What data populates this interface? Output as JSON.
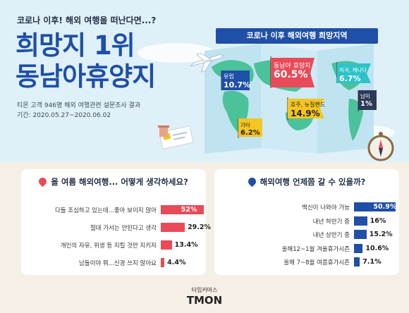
{
  "header": {
    "subtitle": "코로나 이후! 해외 여행을 떠난다면...?",
    "title_line1": "희망지 1위",
    "title_line2": "동남아휴양지",
    "source_line1": "티몬 고객 946명 해외 여행관련 설문조사 결과",
    "source_line2": "기간: 2020.05.27~2020.06.02"
  },
  "colors": {
    "blue": "#1f4fa6",
    "red": "#e94a57",
    "navy": "#2d3a57",
    "yellow": "#f5c520",
    "teal": "#2ec3c8",
    "pink": "#e76a8a"
  },
  "icons": [
    "airplane-icon",
    "location-pin-icon",
    "compass-icon",
    "map-icon"
  ],
  "chart_data": [
    {
      "type": "bar",
      "title": "코로나 이후 해외여행 희망지역",
      "categories": [
        "동남아 휴양지",
        "호주, 뉴질랜드",
        "유럽",
        "미국, 캐나다",
        "기타",
        "남미"
      ],
      "values_label": [
        "60.5%",
        "14.9%",
        "10.7%",
        "6.7%",
        "6.2%",
        "1%"
      ],
      "values": [
        60.5,
        14.9,
        10.7,
        6.7,
        6.2,
        1
      ],
      "unit": "%"
    },
    {
      "type": "bar",
      "title": "올 여름 해외여행... 어떻게 생각하세요?",
      "categories": [
        "다들 조심하고 있는데...좋아 보이지 않아",
        "절대 가서는 안된다고 생각",
        "개인의 자유, 위생 등 지킬 것만 지키자",
        "남들이야 뭐...신경 쓰지 않아요"
      ],
      "values": [
        52,
        29.2,
        13.4,
        4.4
      ],
      "values_label": [
        "52%",
        "29.2%",
        "13.4%",
        "4.4%"
      ],
      "unit": "%"
    },
    {
      "type": "bar",
      "title": "해외여행 언제쯤 갈 수 있을까?",
      "categories": [
        "백신이 나와야 가능",
        "내년 하반기 중",
        "내년 상반기 중",
        "올해12~1월 겨울휴가시즌",
        "올해 7~8월 여름휴가시즌"
      ],
      "values": [
        50.9,
        16,
        15.2,
        10.6,
        7.1
      ],
      "values_label": [
        "50.9%",
        "16%",
        "15.2%",
        "10.6%",
        "7.1%"
      ],
      "unit": "%"
    }
  ],
  "footer": {
    "brand_small": "타임커머스",
    "brand_large": "TMON"
  }
}
